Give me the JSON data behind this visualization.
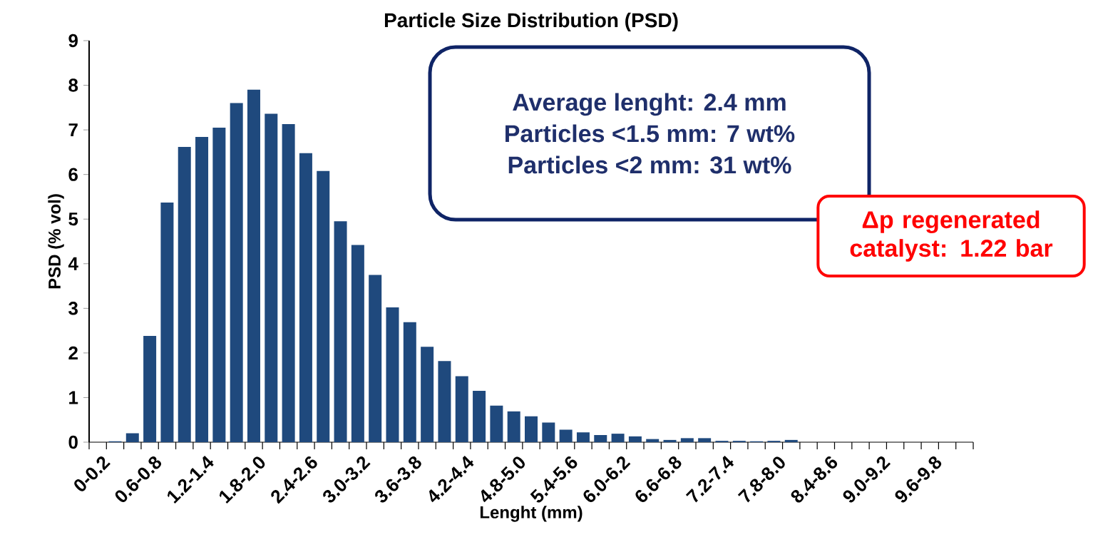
{
  "chart_data": {
    "type": "bar",
    "title": "Particle Size Distribution (PSD)",
    "xlabel": "Lenght (mm)",
    "ylabel": "PSD (% vol)",
    "categories": [
      "0-0.2",
      null,
      null,
      "0.6-0.8",
      null,
      null,
      "1.2-1.4",
      null,
      null,
      "1.8-2.0",
      null,
      null,
      "2.4-2.6",
      null,
      null,
      "3.0-3.2",
      null,
      null,
      "3.6-3.8",
      null,
      null,
      "4.2-4.4",
      null,
      null,
      "4.8-5.0",
      null,
      null,
      "5.4-5.6",
      null,
      null,
      "6.0-6.2",
      null,
      null,
      "6.6-6.8",
      null,
      null,
      "7.2-7.4",
      null,
      null,
      "7.8-8.0",
      null,
      null,
      "8.4-8.6",
      null,
      null,
      "9.0-9.2",
      null,
      null,
      "9.6-9.8",
      null,
      null
    ],
    "values": [
      0,
      0.02,
      0.2,
      2.38,
      5.37,
      6.62,
      6.84,
      7.05,
      7.6,
      7.9,
      7.36,
      7.13,
      6.48,
      6.08,
      4.95,
      4.42,
      3.75,
      3.02,
      2.69,
      2.14,
      1.82,
      1.48,
      1.15,
      0.82,
      0.69,
      0.58,
      0.44,
      0.28,
      0.22,
      0.16,
      0.19,
      0.13,
      0.07,
      0.05,
      0.09,
      0.09,
      0.03,
      0.03,
      0.02,
      0.03,
      0.05,
      0,
      0,
      0,
      0,
      0,
      0,
      0,
      0,
      0,
      0
    ],
    "color": "#1f497d",
    "ylim": [
      0,
      9
    ],
    "yticks": [
      0,
      1,
      2,
      3,
      4,
      5,
      6,
      7,
      8,
      9
    ],
    "grid": false,
    "annotations": [
      "Average lenght: 2.4 mm",
      "Particles <1.5 mm: 7 wt%",
      "Particles <2 mm: 31 wt%",
      "Δp regenerated catalyst: 1.22 bar"
    ]
  }
}
